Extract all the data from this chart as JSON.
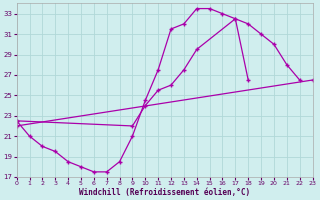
{
  "curve1": [
    [
      0,
      22.5
    ],
    [
      1,
      21.0
    ],
    [
      2,
      20.0
    ],
    [
      3,
      19.5
    ],
    [
      4,
      18.5
    ],
    [
      5,
      18.0
    ],
    [
      6,
      17.5
    ],
    [
      7,
      17.5
    ],
    [
      8,
      18.5
    ],
    [
      9,
      21.0
    ],
    [
      10,
      24.5
    ],
    [
      11,
      27.5
    ],
    [
      12,
      31.5
    ],
    [
      13,
      32.0
    ],
    [
      14,
      33.5
    ],
    [
      15,
      33.5
    ],
    [
      16,
      33.0
    ],
    [
      17,
      32.5
    ],
    [
      18,
      26.5
    ]
  ],
  "curve2": [
    [
      0,
      22.5
    ],
    [
      9,
      22.0
    ],
    [
      10,
      24.0
    ],
    [
      11,
      25.5
    ],
    [
      12,
      26.0
    ],
    [
      13,
      27.5
    ],
    [
      14,
      29.5
    ],
    [
      17,
      32.5
    ],
    [
      18,
      32.0
    ],
    [
      19,
      31.0
    ],
    [
      20,
      30.0
    ],
    [
      21,
      28.0
    ],
    [
      22,
      26.5
    ]
  ],
  "curve3": [
    [
      0,
      22.0
    ],
    [
      23,
      26.5
    ]
  ],
  "color": "#aa00aa",
  "bg_color": "#d0eeee",
  "grid_color": "#b0d8d8",
  "xlabel": "Windchill (Refroidissement éolien,°C)",
  "xlim": [
    0,
    23
  ],
  "ylim": [
    17,
    34
  ],
  "yticks": [
    17,
    19,
    21,
    23,
    25,
    27,
    29,
    31,
    33
  ],
  "xticks": [
    0,
    1,
    2,
    3,
    4,
    5,
    6,
    7,
    8,
    9,
    10,
    11,
    12,
    13,
    14,
    15,
    16,
    17,
    18,
    19,
    20,
    21,
    22,
    23
  ]
}
